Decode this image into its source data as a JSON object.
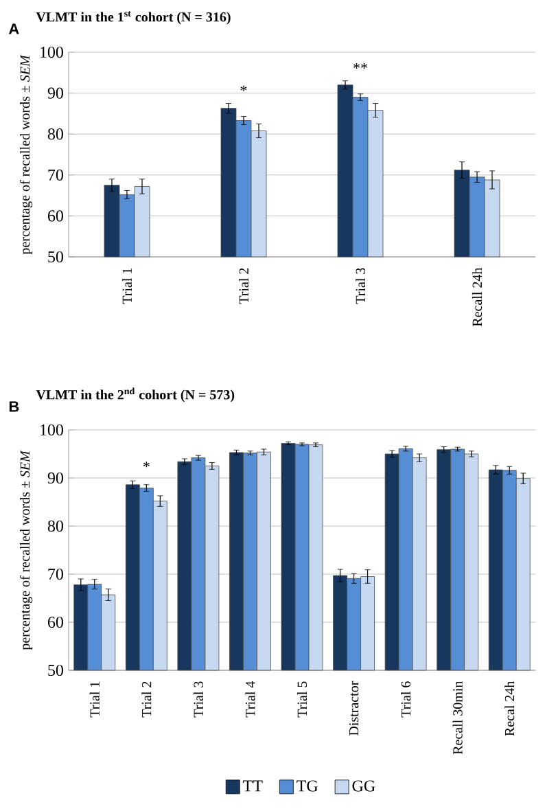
{
  "chart_data": [
    {
      "type": "bar",
      "title": "VLMT in the 1$^{st}$ cohort (N = 316)",
      "ylabel": "percentage of recalled words ± *SEM*",
      "categories": [
        "Trial 1",
        "Trial 2",
        "Trial 3",
        "Recall 24h"
      ],
      "series": [
        {
          "color": "#17375e",
          "values": [
            67.5,
            86.3,
            92.0,
            71.2
          ],
          "errors": [
            1.5,
            1.2,
            1.0,
            2.0
          ]
        },
        {
          "color": "#558ed5",
          "values": [
            65.2,
            83.3,
            89.0,
            69.5
          ],
          "errors": [
            1.0,
            1.0,
            0.8,
            1.3
          ]
        },
        {
          "color": "#c6d9f1",
          "values": [
            67.2,
            80.8,
            85.8,
            68.8
          ],
          "errors": [
            1.8,
            1.7,
            1.7,
            2.2
          ]
        }
      ],
      "ylim": [
        50,
        100
      ],
      "yticks": [
        50,
        60,
        70,
        80,
        90,
        100
      ],
      "grid": "y",
      "annotations": [
        "A",
        "*",
        "**"
      ]
    },
    {
      "type": "bar",
      "title": "VLMT in the 2$^{nd}$ cohort (N = 573)",
      "ylabel": "percentage of recalled words ± *SEM*",
      "categories": [
        "Trial 1",
        "Trial 2",
        "Trial 3",
        "Trial 4",
        "Trial 5",
        "Distractor",
        "Trial 6",
        "Recall 30min",
        "Recal 24h"
      ],
      "series": [
        {
          "name": "TT",
          "color": "#17375e",
          "values": [
            67.8,
            88.6,
            93.4,
            95.3,
            97.2,
            69.7,
            95.0,
            95.9,
            91.7
          ],
          "errors": [
            1.2,
            0.8,
            0.6,
            0.5,
            0.3,
            1.3,
            0.7,
            0.6,
            0.9
          ]
        },
        {
          "name": "TG",
          "color": "#558ed5",
          "values": [
            67.9,
            87.9,
            94.2,
            95.2,
            97.0,
            69.1,
            96.1,
            96.0,
            91.6
          ],
          "errors": [
            1.0,
            0.7,
            0.5,
            0.4,
            0.3,
            1.0,
            0.5,
            0.4,
            0.8
          ]
        },
        {
          "name": "GG",
          "color": "#c6d9f1",
          "values": [
            65.7,
            85.2,
            92.5,
            95.4,
            96.9,
            69.5,
            94.2,
            95.0,
            89.9
          ],
          "errors": [
            1.2,
            1.1,
            0.7,
            0.6,
            0.4,
            1.4,
            0.8,
            0.6,
            1.1
          ]
        }
      ],
      "ylim": [
        50,
        100
      ],
      "yticks": [
        50,
        60,
        70,
        80,
        90,
        100
      ],
      "grid": "y",
      "legend": "bottom",
      "annotations": [
        "B",
        "*"
      ]
    }
  ]
}
